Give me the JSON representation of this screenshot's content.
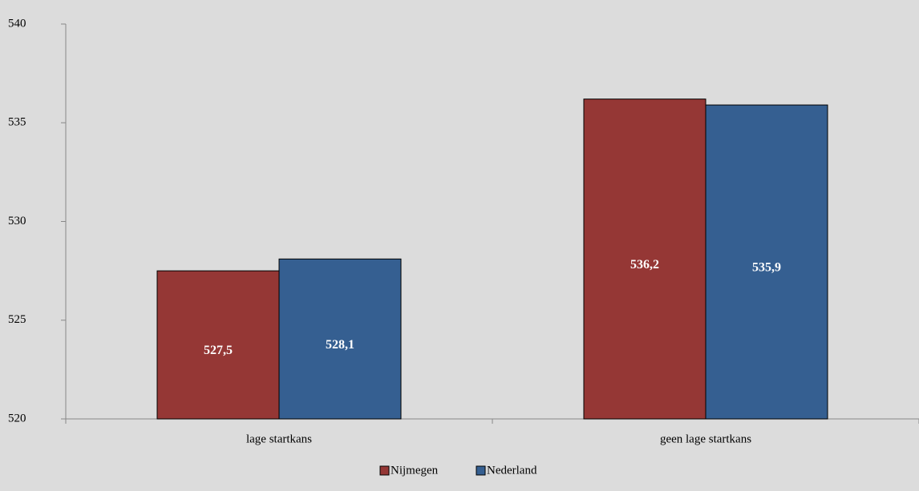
{
  "chart_data": {
    "type": "bar",
    "categories": [
      "lage startkans",
      "geen lage startkans"
    ],
    "series": [
      {
        "name": "Nijmegen",
        "color": "#953735",
        "values": [
          527.5,
          536.2
        ],
        "value_labels": [
          "527,5",
          "536,2"
        ]
      },
      {
        "name": "Nederland",
        "color": "#355f91",
        "values": [
          528.1,
          535.9
        ],
        "value_labels": [
          "528,1",
          "535,9"
        ]
      }
    ],
    "ylim": [
      520,
      540
    ],
    "yticks": [
      520,
      525,
      530,
      535,
      540
    ],
    "grid": false,
    "legend": "bottom"
  }
}
